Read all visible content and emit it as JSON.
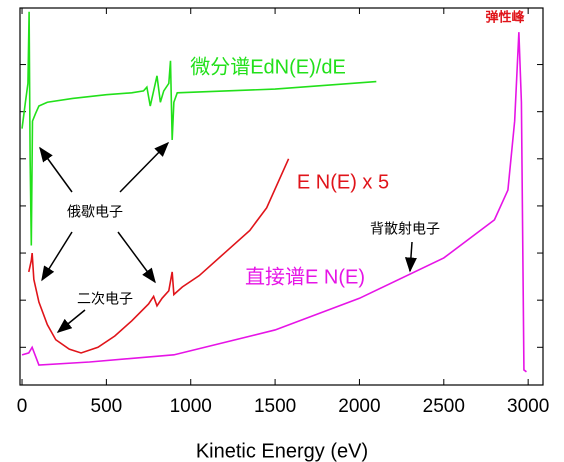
{
  "chart_data": {
    "type": "line",
    "xlabel": "Kinetic Energy (eV)",
    "xlim": [
      -12,
      3088
    ],
    "xticks": [
      0,
      500,
      1000,
      1500,
      2000,
      2500,
      3000
    ],
    "ylim": [
      0,
      100
    ],
    "yticks": [
      10,
      22.5,
      35,
      47.5,
      60,
      72.5,
      85
    ],
    "series": [
      {
        "name": "微分谱EdN(E)/dE",
        "color": "#22e01a",
        "x": [
          0,
          20,
          35,
          42,
          48,
          55,
          62,
          80,
          100,
          150,
          300,
          500,
          650,
          720,
          740,
          760,
          780,
          800,
          820,
          840,
          870,
          880,
          890,
          900,
          920,
          1500,
          2100
        ],
        "values": [
          68,
          75,
          80,
          99,
          60,
          37,
          70,
          72,
          74,
          75,
          76,
          77,
          77.5,
          78,
          79,
          74,
          78,
          82,
          75,
          78,
          80,
          86,
          65,
          75,
          77.5,
          78.5,
          80.5
        ]
      },
      {
        "name": "E N(E) x 5",
        "color": "#e0141a",
        "x": [
          40,
          55,
          60,
          70,
          100,
          150,
          200,
          280,
          350,
          450,
          550,
          650,
          750,
          780,
          800,
          830,
          870,
          890,
          900,
          950,
          1050,
          1200,
          1350,
          1450,
          1580
        ],
        "values": [
          30,
          33,
          35,
          28,
          22,
          16,
          12,
          9.5,
          8.5,
          10,
          13,
          17,
          21.5,
          23.5,
          21,
          23,
          25,
          30,
          24,
          26,
          29,
          35,
          41,
          47,
          60
        ]
      },
      {
        "name": "直接谱E N(E)",
        "color": "#e614e6",
        "x": [
          0,
          40,
          60,
          100,
          400,
          900,
          1500,
          2000,
          2500,
          2800,
          2880,
          2920,
          2945,
          2960,
          2975,
          2990
        ],
        "values": [
          8,
          8.5,
          10,
          5.3,
          6.1,
          8,
          14.6,
          23,
          33.7,
          43.8,
          51.7,
          70,
          93.6,
          75,
          4,
          3.5
        ]
      }
    ],
    "annotations": [
      "俄歇电子",
      "二次电子",
      "背散射电子",
      "弹性峰"
    ]
  }
}
